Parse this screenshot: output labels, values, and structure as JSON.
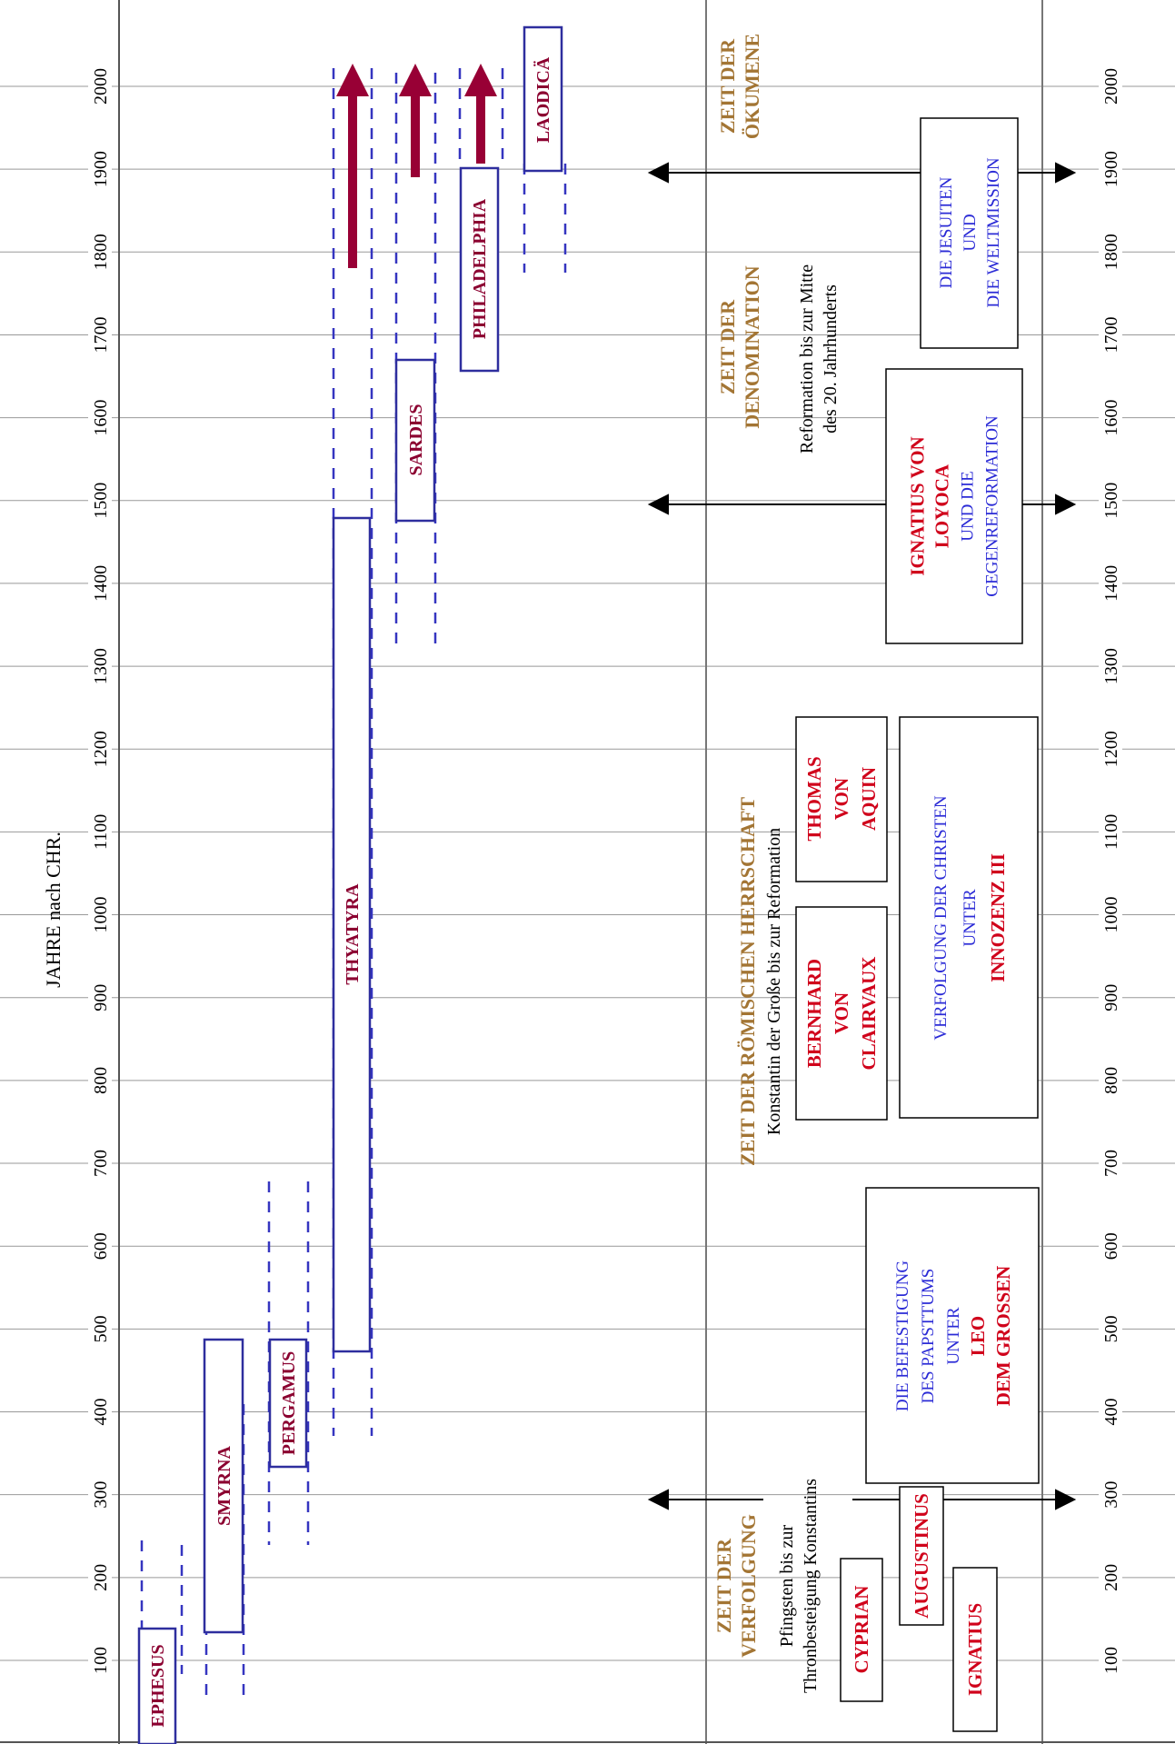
{
  "axis": {
    "title": "JAHRE nach CHR.",
    "years": [
      100,
      200,
      300,
      400,
      500,
      600,
      700,
      800,
      900,
      1000,
      1100,
      1200,
      1300,
      1400,
      1500,
      1600,
      1700,
      1800,
      1900,
      2000
    ]
  },
  "colors": {
    "church_label": "#8b0030",
    "box_border": "#2e2e9e",
    "dash": "#3535c0",
    "arrow": "#980035",
    "era_title": "#a37534",
    "person_red": "#d0021b",
    "blue_text": "#2b2bd6",
    "grid": "#999999",
    "frame": "#555555"
  },
  "churches": [
    {
      "name": "EPHESUS"
    },
    {
      "name": "SMYRNA"
    },
    {
      "name": "PERGAMUS"
    },
    {
      "name": "THYATYRA"
    },
    {
      "name": "SARDES"
    },
    {
      "name": "PHILADELPHIA"
    },
    {
      "name": "LAODICÄ"
    }
  ],
  "eras": [
    {
      "title_lines": [
        "ZEIT DER",
        "ÖKUMENE"
      ],
      "desc_lines": []
    },
    {
      "title_lines": [
        "ZEIT DER",
        "DENOMINATION"
      ],
      "desc_lines": [
        "Reformation bis zur Mitte",
        "des 20. Jahrhunderts"
      ]
    },
    {
      "title_lines": [
        "ZEIT DER RÖMISCHEN HERRSCHAFT"
      ],
      "desc_lines": [
        "Konstantin der Große  bis  zur Reformation"
      ]
    },
    {
      "title_lines": [
        "ZEIT DER",
        "VERFOLGUNG"
      ],
      "desc_lines": [
        "Pfingsten bis zur",
        "Thronbesteigung Konstantins"
      ]
    }
  ],
  "persons": [
    {
      "lines": [
        {
          "text": "DIE JESUITEN",
          "style": "blue"
        },
        {
          "text": "UND",
          "style": "blue"
        },
        {
          "text": "DIE WELTMISSION",
          "style": "blue"
        }
      ]
    },
    {
      "lines": [
        {
          "text": "IGNATIUS VON",
          "style": "red"
        },
        {
          "text": "LOYOCA",
          "style": "red"
        },
        {
          "text": "UND DIE",
          "style": "blue"
        },
        {
          "text": "GEGENREFORMATION",
          "style": "blue"
        }
      ]
    },
    {
      "lines": [
        {
          "text": "THOMAS",
          "style": "red"
        },
        {
          "text": "VON",
          "style": "red"
        },
        {
          "text": "AQUIN",
          "style": "red"
        }
      ]
    },
    {
      "lines": [
        {
          "text": "BERNHARD",
          "style": "red"
        },
        {
          "text": "VON",
          "style": "red"
        },
        {
          "text": "CLAIRVAUX",
          "style": "red"
        }
      ]
    },
    {
      "lines": [
        {
          "text": "VERFOLGUNG DER CHRISTEN",
          "style": "blue"
        },
        {
          "text": "UNTER",
          "style": "blue"
        },
        {
          "text": "INNOZENZ III",
          "style": "red"
        }
      ]
    },
    {
      "lines": [
        {
          "text": "DIE BEFESTIGUNG",
          "style": "blue"
        },
        {
          "text": "DES PAPSTTUMS",
          "style": "blue"
        },
        {
          "text": "UNTER",
          "style": "blue"
        },
        {
          "text": "LEO",
          "style": "red"
        },
        {
          "text": "DEM GROSSEN",
          "style": "red"
        }
      ]
    },
    {
      "lines": [
        {
          "text": "AUGUSTINUS",
          "style": "red"
        }
      ]
    },
    {
      "lines": [
        {
          "text": "CYPRIAN",
          "style": "red"
        }
      ]
    },
    {
      "lines": [
        {
          "text": "IGNATIUS",
          "style": "red"
        }
      ]
    }
  ]
}
